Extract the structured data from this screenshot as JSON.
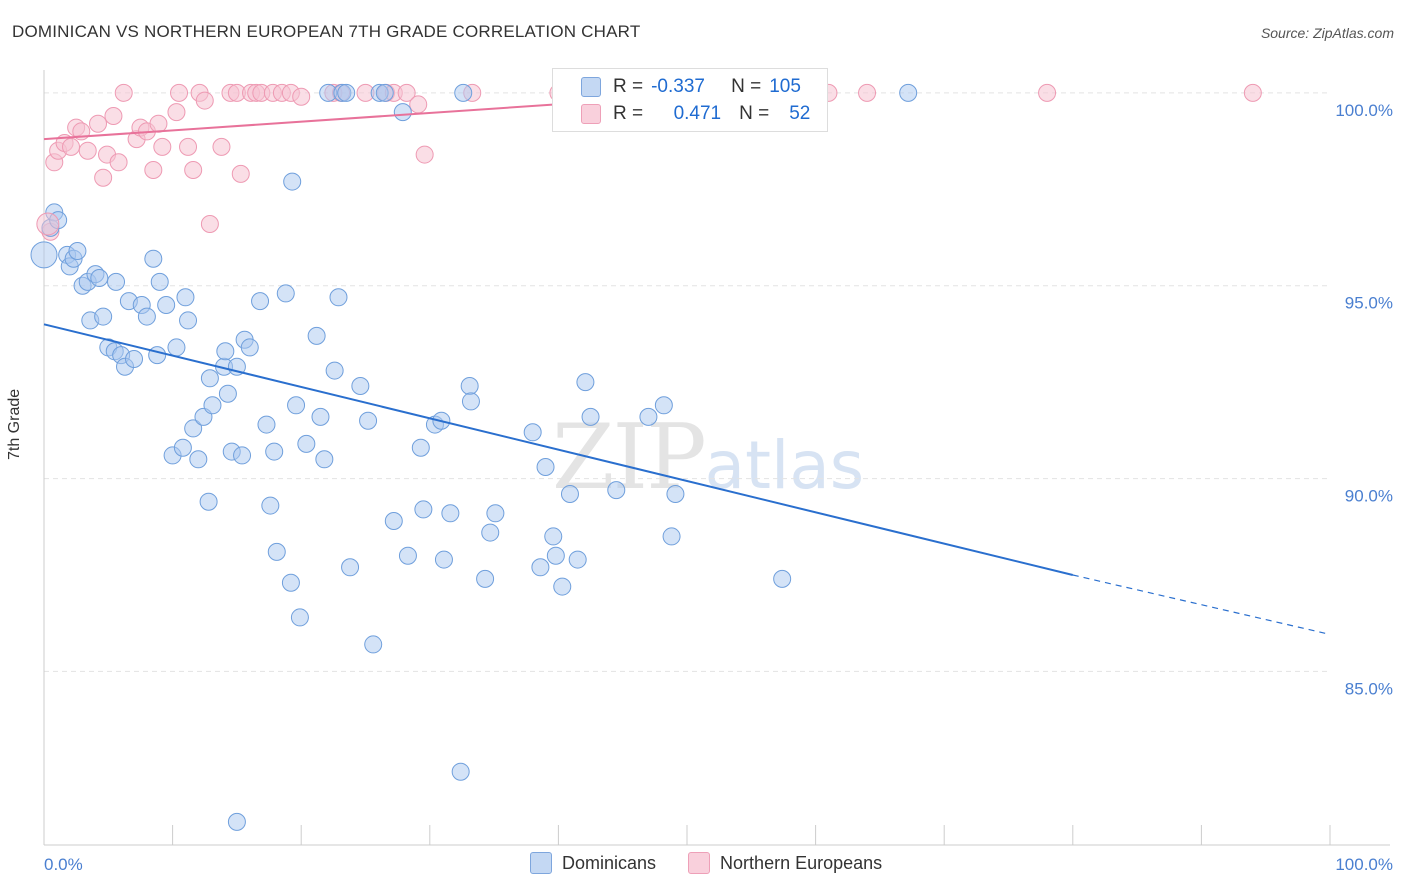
{
  "header": {
    "title": "DOMINICAN VS NORTHERN EUROPEAN 7TH GRADE CORRELATION CHART",
    "source": "Source: ZipAtlas.com"
  },
  "watermark": {
    "zip": "ZIP",
    "atlas": "atlas"
  },
  "legend": {
    "rows": [
      {
        "r_label": "R =",
        "r_value": "-0.337",
        "n_label": "N =",
        "n_value": "105",
        "color": "#a9c7ef"
      },
      {
        "r_label": "R =",
        "r_value": "0.471",
        "n_label": "N =",
        "n_value": "52",
        "color": "#f6b8ca"
      }
    ]
  },
  "bottom_legend": [
    "Dominicans",
    "Northern Europeans"
  ],
  "colors": {
    "dominican_fill": "#a9c7ef",
    "dominican_stroke": "#6f9fdc",
    "dominican_line": "#2a6fce",
    "northern_fill": "#f6c3d2",
    "northern_stroke": "#ee9ab3",
    "northern_line": "#e8729a",
    "tick_label": "#4a7fd0",
    "grid": "#e3e3e3"
  },
  "chart_data": {
    "type": "scatter",
    "title": "DOMINICAN VS NORTHERN EUROPEAN 7TH GRADE CORRELATION CHART",
    "xlabel": "",
    "ylabel": "7th Grade",
    "xlim": [
      0,
      100
    ],
    "ylim": [
      80.5,
      100.8
    ],
    "x_tick_labels": [
      "0.0%",
      "100.0%"
    ],
    "y_ticks": [
      85,
      90,
      95,
      100
    ],
    "y_tick_labels": [
      "85.0%",
      "90.0%",
      "95.0%",
      "100.0%"
    ],
    "grid": true,
    "series": [
      {
        "name": "Dominicans",
        "trend": {
          "x0": 0,
          "y0": 94.0,
          "x1": 80,
          "y1": 87.5,
          "dashed_to_x": 100,
          "dashed_to_y": 85.96
        },
        "points": [
          [
            0.5,
            96.5
          ],
          [
            0.8,
            96.9
          ],
          [
            1.1,
            96.7
          ],
          [
            1.8,
            95.8
          ],
          [
            2.0,
            95.5
          ],
          [
            2.3,
            95.7
          ],
          [
            2.6,
            95.9
          ],
          [
            3.0,
            95.0
          ],
          [
            3.4,
            95.1
          ],
          [
            4.0,
            95.3
          ],
          [
            4.3,
            95.2
          ],
          [
            3.6,
            94.1
          ],
          [
            4.6,
            94.2
          ],
          [
            5.6,
            95.1
          ],
          [
            5.0,
            93.4
          ],
          [
            5.5,
            93.3
          ],
          [
            6.0,
            93.2
          ],
          [
            6.3,
            92.9
          ],
          [
            6.6,
            94.6
          ],
          [
            7.0,
            93.1
          ],
          [
            7.6,
            94.5
          ],
          [
            8.0,
            94.2
          ],
          [
            8.5,
            95.7
          ],
          [
            8.8,
            93.2
          ],
          [
            9.0,
            95.1
          ],
          [
            9.5,
            94.5
          ],
          [
            10.0,
            90.6
          ],
          [
            10.3,
            93.4
          ],
          [
            10.8,
            90.8
          ],
          [
            11.0,
            94.7
          ],
          [
            11.2,
            94.1
          ],
          [
            11.6,
            91.3
          ],
          [
            12.0,
            90.5
          ],
          [
            12.4,
            91.6
          ],
          [
            12.8,
            89.4
          ],
          [
            12.9,
            92.6
          ],
          [
            13.1,
            91.9
          ],
          [
            14.0,
            92.9
          ],
          [
            14.1,
            93.3
          ],
          [
            14.3,
            92.2
          ],
          [
            14.6,
            90.7
          ],
          [
            15.0,
            92.9
          ],
          [
            15.4,
            90.6
          ],
          [
            15.6,
            93.6
          ],
          [
            16.0,
            93.4
          ],
          [
            16.8,
            94.6
          ],
          [
            17.3,
            91.4
          ],
          [
            17.6,
            89.3
          ],
          [
            17.9,
            90.7
          ],
          [
            18.1,
            88.1
          ],
          [
            18.8,
            94.8
          ],
          [
            19.2,
            87.3
          ],
          [
            19.3,
            97.7
          ],
          [
            19.6,
            91.9
          ],
          [
            19.9,
            86.4
          ],
          [
            20.4,
            90.9
          ],
          [
            21.2,
            93.7
          ],
          [
            21.5,
            91.6
          ],
          [
            21.8,
            90.5
          ],
          [
            22.1,
            100.0
          ],
          [
            22.6,
            92.8
          ],
          [
            22.9,
            94.7
          ],
          [
            23.2,
            100.0
          ],
          [
            23.5,
            100.0
          ],
          [
            23.8,
            87.7
          ],
          [
            24.6,
            92.4
          ],
          [
            25.2,
            91.5
          ],
          [
            25.6,
            85.7
          ],
          [
            26.1,
            100.0
          ],
          [
            26.5,
            100.0
          ],
          [
            27.2,
            88.9
          ],
          [
            27.9,
            99.5
          ],
          [
            28.3,
            88.0
          ],
          [
            29.3,
            90.8
          ],
          [
            29.5,
            89.2
          ],
          [
            30.4,
            91.4
          ],
          [
            30.9,
            91.5
          ],
          [
            31.1,
            87.9
          ],
          [
            31.6,
            89.1
          ],
          [
            32.4,
            82.4
          ],
          [
            32.6,
            100.0
          ],
          [
            33.1,
            92.4
          ],
          [
            33.2,
            92.0
          ],
          [
            34.3,
            87.4
          ],
          [
            34.7,
            88.6
          ],
          [
            35.1,
            89.1
          ],
          [
            38.0,
            91.2
          ],
          [
            38.6,
            87.7
          ],
          [
            39.0,
            90.3
          ],
          [
            39.6,
            88.5
          ],
          [
            39.8,
            88.0
          ],
          [
            40.3,
            87.2
          ],
          [
            40.9,
            89.6
          ],
          [
            41.5,
            87.9
          ],
          [
            42.1,
            92.5
          ],
          [
            42.5,
            91.6
          ],
          [
            44.5,
            89.7
          ],
          [
            47.0,
            91.6
          ],
          [
            48.2,
            91.9
          ],
          [
            48.8,
            88.5
          ],
          [
            49.1,
            89.6
          ],
          [
            57.4,
            87.4
          ],
          [
            67.2,
            100.0
          ],
          [
            15.0,
            81.1
          ]
        ]
      },
      {
        "name": "Northern Europeans",
        "trend": {
          "x0": 0,
          "y0": 98.8,
          "x1": 53,
          "y1": 100.0
        },
        "points": [
          [
            0.5,
            96.4
          ],
          [
            0.8,
            98.2
          ],
          [
            1.1,
            98.5
          ],
          [
            1.6,
            98.7
          ],
          [
            2.1,
            98.6
          ],
          [
            2.5,
            99.1
          ],
          [
            2.9,
            99.0
          ],
          [
            3.4,
            98.5
          ],
          [
            4.2,
            99.2
          ],
          [
            4.6,
            97.8
          ],
          [
            4.9,
            98.4
          ],
          [
            5.4,
            99.4
          ],
          [
            5.8,
            98.2
          ],
          [
            6.2,
            100.0
          ],
          [
            7.2,
            98.8
          ],
          [
            7.5,
            99.1
          ],
          [
            8.0,
            99.0
          ],
          [
            8.5,
            98.0
          ],
          [
            8.9,
            99.2
          ],
          [
            9.2,
            98.6
          ],
          [
            10.3,
            99.5
          ],
          [
            10.5,
            100.0
          ],
          [
            11.2,
            98.6
          ],
          [
            11.6,
            98.0
          ],
          [
            12.1,
            100.0
          ],
          [
            12.5,
            99.8
          ],
          [
            12.9,
            96.6
          ],
          [
            13.8,
            98.6
          ],
          [
            14.5,
            100.0
          ],
          [
            15.0,
            100.0
          ],
          [
            15.3,
            97.9
          ],
          [
            16.1,
            100.0
          ],
          [
            16.5,
            100.0
          ],
          [
            16.9,
            100.0
          ],
          [
            17.8,
            100.0
          ],
          [
            18.5,
            100.0
          ],
          [
            19.2,
            100.0
          ],
          [
            20.0,
            99.9
          ],
          [
            22.5,
            100.0
          ],
          [
            23.1,
            100.0
          ],
          [
            25.0,
            100.0
          ],
          [
            26.6,
            100.0
          ],
          [
            27.2,
            100.0
          ],
          [
            28.2,
            100.0
          ],
          [
            29.1,
            99.7
          ],
          [
            29.6,
            98.4
          ],
          [
            33.3,
            100.0
          ],
          [
            40.0,
            100.0
          ],
          [
            61.0,
            100.0
          ],
          [
            64.0,
            100.0
          ],
          [
            78.0,
            100.0
          ],
          [
            94.0,
            100.0
          ]
        ]
      }
    ]
  }
}
